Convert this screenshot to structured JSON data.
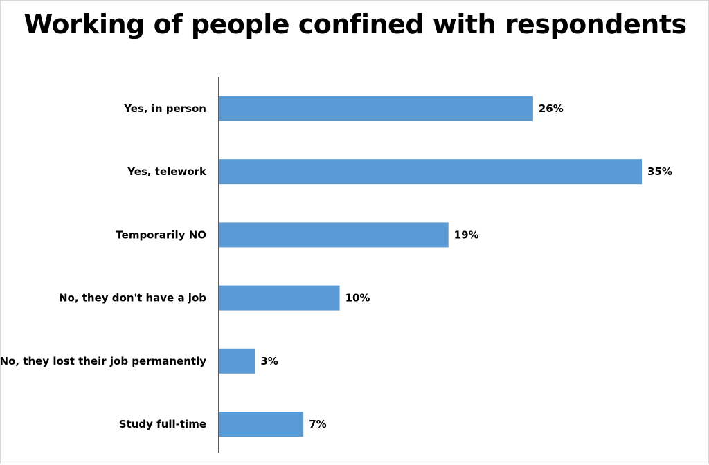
{
  "chart_data": {
    "type": "bar",
    "orientation": "horizontal",
    "title": "Working of people confined with respondents",
    "categories": [
      "Yes, in person",
      "Yes, telework",
      "Temporarily NO",
      "No, they don't have a job",
      "No, they lost their job permanently",
      "Study full-time"
    ],
    "values": [
      26,
      35,
      19,
      10,
      3,
      7
    ],
    "value_labels": [
      "26%",
      "35%",
      "19%",
      "10%",
      "3%",
      "7%"
    ],
    "xlim": [
      0,
      35
    ],
    "xlabel": "",
    "ylabel": "",
    "grid": false,
    "legend": "none",
    "bar_color": "#5b9bd5"
  }
}
